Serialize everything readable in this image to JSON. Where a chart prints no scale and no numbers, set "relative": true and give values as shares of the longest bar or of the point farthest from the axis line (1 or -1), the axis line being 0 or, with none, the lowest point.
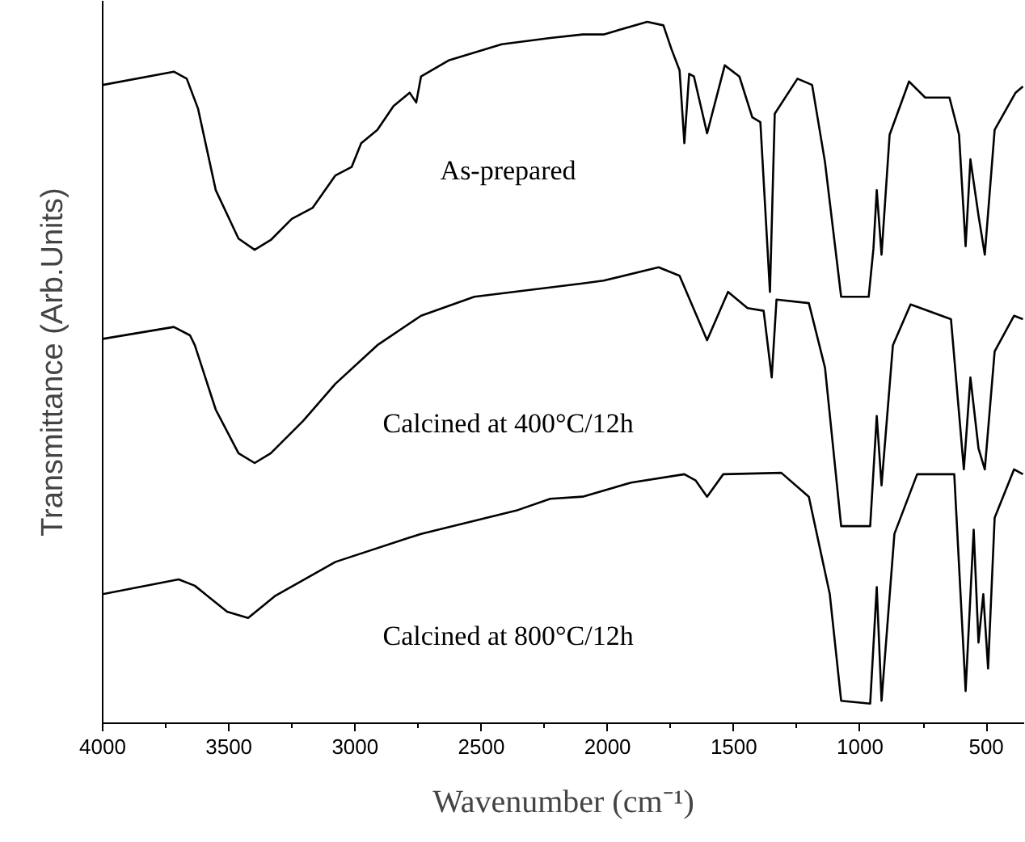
{
  "chart_data": {
    "type": "line",
    "relative": true,
    "xlabel": "Wavenumber (cm⁻¹)",
    "ylabel": "Transmittance (Arb.Units)",
    "xlim": [
      4000,
      350
    ],
    "xticks": [
      4000,
      3500,
      3000,
      2500,
      2000,
      1500,
      1000,
      500
    ],
    "grid": false,
    "legend": false,
    "line_style": "solid",
    "marker": "none",
    "series": [
      {
        "name": "As-prepared",
        "color": "#000000",
        "x": [
          4000,
          3718,
          3667,
          3622,
          3552,
          3462,
          3398,
          3334,
          3251,
          3168,
          3078,
          3014,
          2976,
          2912,
          2848,
          2784,
          2758,
          2739,
          2630,
          2419,
          2227,
          2099,
          2016,
          1843,
          1779,
          1747,
          1715,
          1696,
          1677,
          1658,
          1606,
          1536,
          1478,
          1427,
          1395,
          1357,
          1338,
          1248,
          1190,
          1139,
          1075,
          966,
          947,
          934,
          915,
          883,
          806,
          742,
          646,
          608,
          582,
          563,
          531,
          506,
          467,
          384,
          355
        ],
        "values": [
          0.91,
          0.929,
          0.919,
          0.876,
          0.76,
          0.691,
          0.675,
          0.689,
          0.719,
          0.735,
          0.781,
          0.793,
          0.827,
          0.846,
          0.88,
          0.899,
          0.885,
          0.922,
          0.945,
          0.968,
          0.977,
          0.982,
          0.982,
          1.0,
          0.995,
          0.961,
          0.931,
          0.827,
          0.926,
          0.922,
          0.841,
          0.938,
          0.922,
          0.864,
          0.857,
          0.615,
          0.869,
          0.919,
          0.91,
          0.8,
          0.608,
          0.608,
          0.677,
          0.76,
          0.668,
          0.839,
          0.915,
          0.892,
          0.892,
          0.839,
          0.68,
          0.804,
          0.724,
          0.668,
          0.846,
          0.899,
          0.908
        ]
      },
      {
        "name": "Calcined at 400°C/12h",
        "color": "#000000",
        "x": [
          4000,
          3718,
          3654,
          3635,
          3552,
          3462,
          3398,
          3334,
          3206,
          3078,
          2912,
          2739,
          2528,
          2099,
          2016,
          1798,
          1715,
          1606,
          1523,
          1446,
          1382,
          1350,
          1331,
          1203,
          1139,
          1075,
          960,
          934,
          915,
          870,
          800,
          640,
          589,
          563,
          531,
          506,
          467,
          390,
          355
        ],
        "values": [
          0.548,
          0.565,
          0.553,
          0.539,
          0.447,
          0.385,
          0.371,
          0.385,
          0.431,
          0.484,
          0.539,
          0.581,
          0.608,
          0.627,
          0.631,
          0.65,
          0.638,
          0.546,
          0.615,
          0.592,
          0.588,
          0.493,
          0.604,
          0.599,
          0.507,
          0.281,
          0.281,
          0.438,
          0.339,
          0.539,
          0.597,
          0.576,
          0.362,
          0.493,
          0.392,
          0.362,
          0.53,
          0.581,
          0.576
        ]
      },
      {
        "name": "Calcined at 800°C/12h",
        "color": "#000000",
        "x": [
          4000,
          3699,
          3635,
          3507,
          3424,
          3315,
          3078,
          2739,
          2355,
          2227,
          2099,
          1907,
          1696,
          1651,
          1606,
          1542,
          1312,
          1203,
          1120,
          1075,
          960,
          934,
          915,
          864,
          774,
          627,
          582,
          550,
          531,
          512,
          493,
          467,
          390,
          355
        ],
        "values": [
          0.184,
          0.205,
          0.196,
          0.159,
          0.15,
          0.182,
          0.23,
          0.27,
          0.304,
          0.32,
          0.323,
          0.343,
          0.355,
          0.346,
          0.323,
          0.355,
          0.357,
          0.323,
          0.184,
          0.032,
          0.028,
          0.194,
          0.032,
          0.27,
          0.355,
          0.355,
          0.046,
          0.276,
          0.115,
          0.184,
          0.078,
          0.293,
          0.362,
          0.355
        ]
      }
    ]
  }
}
